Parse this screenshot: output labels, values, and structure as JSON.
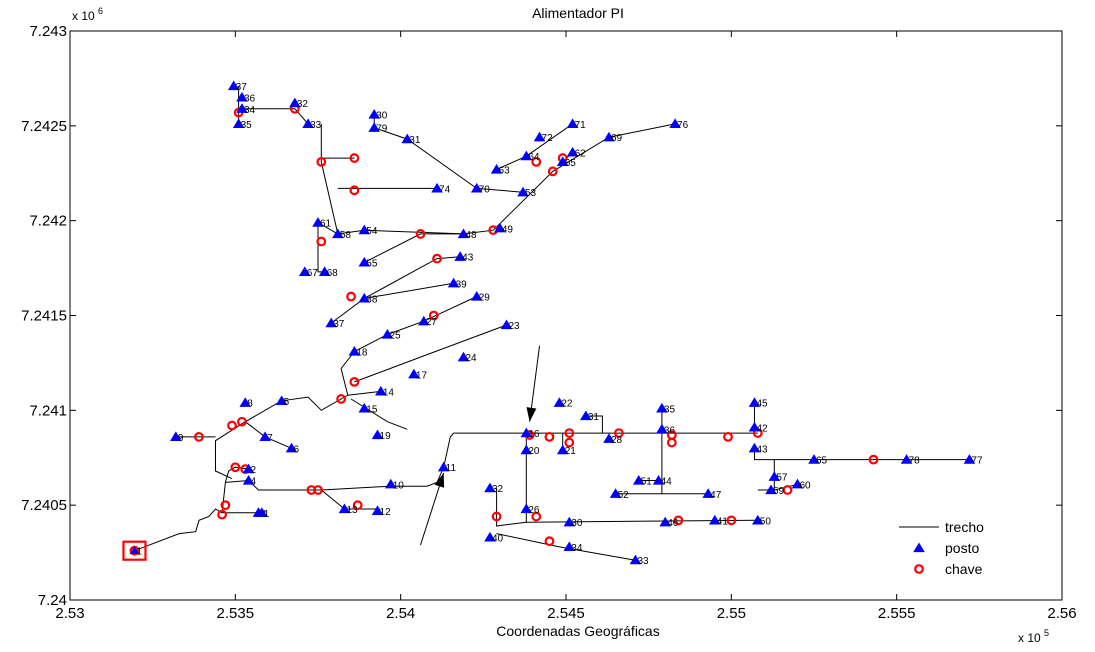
{
  "chart_data": {
    "type": "scatter",
    "title": "Alimentador PI",
    "xlabel": "Coordenadas Geográficas",
    "ylabel": "",
    "x_multiplier": "x 10",
    "x_multiplier_exp": "5",
    "y_multiplier": "x 10",
    "y_multiplier_exp": "6",
    "xlim": [
      2.53,
      2.56
    ],
    "ylim": [
      7.24,
      7.243
    ],
    "xticks": [
      "2.53",
      "2.535",
      "2.54",
      "2.545",
      "2.55",
      "2.555",
      "2.56"
    ],
    "xtick_values": [
      2.53,
      2.535,
      2.54,
      2.545,
      2.55,
      2.555,
      2.56
    ],
    "yticks": [
      "7.24",
      "7.2405",
      "7.241",
      "7.2415",
      "7.242",
      "7.2425",
      "7.243"
    ],
    "ytick_values": [
      7.24,
      7.2405,
      7.241,
      7.2415,
      7.242,
      7.2425,
      7.243
    ],
    "legend": {
      "position": "bottom-right",
      "entries": [
        {
          "label": "trecho",
          "marker": "line",
          "color": "#000000"
        },
        {
          "label": "posto",
          "marker": "triangle",
          "color": "#0000ff"
        },
        {
          "label": "chave",
          "marker": "circle",
          "color": "#ff0000"
        }
      ]
    },
    "colors": {
      "trecho": "#000000",
      "posto": "#0000ff",
      "chave": "#ff0000"
    },
    "postos": [
      {
        "label": "37",
        "x": 2.53495,
        "y": 7.24271
      },
      {
        "label": "36",
        "x": 2.5352,
        "y": 7.24265
      },
      {
        "label": "34",
        "x": 2.5352,
        "y": 7.24259
      },
      {
        "label": "35",
        "x": 2.5351,
        "y": 7.24251
      },
      {
        "label": "32",
        "x": 2.5368,
        "y": 7.24262
      },
      {
        "label": "33",
        "x": 2.5372,
        "y": 7.24251
      },
      {
        "label": "30",
        "x": 2.5392,
        "y": 7.24256
      },
      {
        "label": "79",
        "x": 2.5392,
        "y": 7.24249
      },
      {
        "label": "31",
        "x": 2.5402,
        "y": 7.24243
      },
      {
        "label": "71",
        "x": 2.5452,
        "y": 7.24251
      },
      {
        "label": "76",
        "x": 2.5483,
        "y": 7.24251
      },
      {
        "label": "72",
        "x": 2.5442,
        "y": 7.24244
      },
      {
        "label": "69",
        "x": 2.5463,
        "y": 7.24244
      },
      {
        "label": "62",
        "x": 2.5452,
        "y": 7.24236
      },
      {
        "label": "63",
        "x": 2.5429,
        "y": 7.24227
      },
      {
        "label": "64",
        "x": 2.5438,
        "y": 7.24234
      },
      {
        "label": "65",
        "x": 2.5449,
        "y": 7.24231
      },
      {
        "label": "70",
        "x": 2.5423,
        "y": 7.24217
      },
      {
        "label": "53",
        "x": 2.5437,
        "y": 7.24215
      },
      {
        "label": "74",
        "x": 2.5411,
        "y": 7.24217
      },
      {
        "label": "61",
        "x": 2.5375,
        "y": 7.24199
      },
      {
        "label": "58",
        "x": 2.5381,
        "y": 7.24193
      },
      {
        "label": "54",
        "x": 2.5389,
        "y": 7.24195
      },
      {
        "label": "48",
        "x": 2.5419,
        "y": 7.24193
      },
      {
        "label": "49",
        "x": 2.543,
        "y": 7.24196
      },
      {
        "label": "55",
        "x": 2.5389,
        "y": 7.24178
      },
      {
        "label": "67",
        "x": 2.5371,
        "y": 7.24173
      },
      {
        "label": "68",
        "x": 2.5377,
        "y": 7.24173
      },
      {
        "label": "43",
        "x": 2.5418,
        "y": 7.24181
      },
      {
        "label": "39",
        "x": 2.5416,
        "y": 7.24167
      },
      {
        "label": "38",
        "x": 2.5389,
        "y": 7.24159
      },
      {
        "label": "29",
        "x": 2.5423,
        "y": 7.2416
      },
      {
        "label": "37",
        "x": 2.5379,
        "y": 7.24146
      },
      {
        "label": "27",
        "x": 2.5407,
        "y": 7.24147
      },
      {
        "label": "25",
        "x": 2.5396,
        "y": 7.2414
      },
      {
        "label": "23",
        "x": 2.5432,
        "y": 7.24145
      },
      {
        "label": "18",
        "x": 2.5386,
        "y": 7.24131
      },
      {
        "label": "24",
        "x": 2.5419,
        "y": 7.24128
      },
      {
        "label": "17",
        "x": 2.5404,
        "y": 7.24119
      },
      {
        "label": "14",
        "x": 2.5394,
        "y": 7.2411
      },
      {
        "label": "15",
        "x": 2.5389,
        "y": 7.24101
      },
      {
        "label": "19",
        "x": 2.5393,
        "y": 7.24087
      },
      {
        "label": "8",
        "x": 2.5353,
        "y": 7.24104
      },
      {
        "label": "5",
        "x": 2.5364,
        "y": 7.24105
      },
      {
        "label": "7",
        "x": 2.5359,
        "y": 7.24086
      },
      {
        "label": "6",
        "x": 2.5367,
        "y": 7.2408
      },
      {
        "label": "9",
        "x": 2.5332,
        "y": 7.24086
      },
      {
        "label": "2",
        "x": 2.5354,
        "y": 7.24069
      },
      {
        "label": "4",
        "x": 2.5354,
        "y": 7.24063
      },
      {
        "label": "3",
        "x": 2.5357,
        "y": 7.24046
      },
      {
        "label": "10",
        "x": 2.5397,
        "y": 7.24061
      },
      {
        "label": "13",
        "x": 2.5383,
        "y": 7.24048
      },
      {
        "label": "12",
        "x": 2.5393,
        "y": 7.24047
      },
      {
        "label": "11",
        "x": 2.5413,
        "y": 7.2407
      },
      {
        "label": "16",
        "x": 2.5438,
        "y": 7.24088
      },
      {
        "label": "20",
        "x": 2.5438,
        "y": 7.24079
      },
      {
        "label": "21",
        "x": 2.5449,
        "y": 7.24079
      },
      {
        "label": "22",
        "x": 2.5448,
        "y": 7.24104
      },
      {
        "label": "31",
        "x": 2.5456,
        "y": 7.24097
      },
      {
        "label": "28",
        "x": 2.5463,
        "y": 7.24085
      },
      {
        "label": "35",
        "x": 2.5479,
        "y": 7.24101
      },
      {
        "label": "36",
        "x": 2.5479,
        "y": 7.2409
      },
      {
        "label": "45",
        "x": 2.5507,
        "y": 7.24104
      },
      {
        "label": "42",
        "x": 2.5507,
        "y": 7.24091
      },
      {
        "label": "43",
        "x": 2.5507,
        "y": 7.2408
      },
      {
        "label": "65",
        "x": 2.5525,
        "y": 7.24074
      },
      {
        "label": "78",
        "x": 2.5553,
        "y": 7.24074
      },
      {
        "label": "77",
        "x": 2.5572,
        "y": 7.24074
      },
      {
        "label": "57",
        "x": 2.5513,
        "y": 7.24065
      },
      {
        "label": "60",
        "x": 2.552,
        "y": 7.24061
      },
      {
        "label": "59",
        "x": 2.5512,
        "y": 7.24058
      },
      {
        "label": "51",
        "x": 2.5472,
        "y": 7.24063
      },
      {
        "label": "44",
        "x": 2.5478,
        "y": 7.24063
      },
      {
        "label": "52",
        "x": 2.5465,
        "y": 7.24056
      },
      {
        "label": "47",
        "x": 2.5493,
        "y": 7.24056
      },
      {
        "label": "32",
        "x": 2.5427,
        "y": 7.24059
      },
      {
        "label": "26",
        "x": 2.5438,
        "y": 7.24048
      },
      {
        "label": "30",
        "x": 2.5451,
        "y": 7.24041
      },
      {
        "label": "40",
        "x": 2.5427,
        "y": 7.24033
      },
      {
        "label": "46",
        "x": 2.548,
        "y": 7.24041
      },
      {
        "label": "41",
        "x": 2.5495,
        "y": 7.24042
      },
      {
        "label": "50",
        "x": 2.5508,
        "y": 7.24042
      },
      {
        "label": "34",
        "x": 2.5451,
        "y": 7.24028
      },
      {
        "label": "33",
        "x": 2.5471,
        "y": 7.24021
      },
      {
        "label": "1",
        "x": 2.5358,
        "y": 7.24046
      }
    ],
    "chaves": [
      {
        "x": 2.53195,
        "y": 7.24026
      },
      {
        "x": 2.5351,
        "y": 7.24257
      },
      {
        "x": 2.5368,
        "y": 7.24259
      },
      {
        "x": 2.5376,
        "y": 7.24231
      },
      {
        "x": 2.5386,
        "y": 7.24233
      },
      {
        "x": 2.5386,
        "y": 7.24216
      },
      {
        "x": 2.5376,
        "y": 7.24189
      },
      {
        "x": 2.5406,
        "y": 7.24193
      },
      {
        "x": 2.5428,
        "y": 7.24195
      },
      {
        "x": 2.5441,
        "y": 7.24231
      },
      {
        "x": 2.5449,
        "y": 7.24233
      },
      {
        "x": 2.5446,
        "y": 7.24226
      },
      {
        "x": 2.5411,
        "y": 7.2418
      },
      {
        "x": 2.5385,
        "y": 7.2416
      },
      {
        "x": 2.541,
        "y": 7.2415
      },
      {
        "x": 2.5386,
        "y": 7.24115
      },
      {
        "x": 2.5382,
        "y": 7.24106
      },
      {
        "x": 2.5339,
        "y": 7.24086
      },
      {
        "x": 2.5349,
        "y": 7.24092
      },
      {
        "x": 2.5352,
        "y": 7.24094
      },
      {
        "x": 2.535,
        "y": 7.2407
      },
      {
        "x": 2.5353,
        "y": 7.24069
      },
      {
        "x": 2.5347,
        "y": 7.2405
      },
      {
        "x": 2.5346,
        "y": 7.24045
      },
      {
        "x": 2.5373,
        "y": 7.24058
      },
      {
        "x": 2.5375,
        "y": 7.24058
      },
      {
        "x": 2.5387,
        "y": 7.2405
      },
      {
        "x": 2.5439,
        "y": 7.24087
      },
      {
        "x": 2.5445,
        "y": 7.24086
      },
      {
        "x": 2.5451,
        "y": 7.24088
      },
      {
        "x": 2.5451,
        "y": 7.24083
      },
      {
        "x": 2.5466,
        "y": 7.24088
      },
      {
        "x": 2.5482,
        "y": 7.24087
      },
      {
        "x": 2.5482,
        "y": 7.24083
      },
      {
        "x": 2.5499,
        "y": 7.24086
      },
      {
        "x": 2.5508,
        "y": 7.24088
      },
      {
        "x": 2.5517,
        "y": 7.24058
      },
      {
        "x": 2.5543,
        "y": 7.24074
      },
      {
        "x": 2.5429,
        "y": 7.24044
      },
      {
        "x": 2.5441,
        "y": 7.24044
      },
      {
        "x": 2.5445,
        "y": 7.24031
      },
      {
        "x": 2.5484,
        "y": 7.24042
      },
      {
        "x": 2.55,
        "y": 7.24042
      }
    ],
    "trechos": [
      [
        [
          2.53195,
          7.24026
        ],
        [
          2.5333,
          7.24035
        ],
        [
          2.5338,
          7.24036
        ],
        [
          2.5339,
          7.24042
        ],
        [
          2.5342,
          7.24044
        ],
        [
          2.5344,
          7.24048
        ],
        [
          2.5346,
          7.24046
        ]
      ],
      [
        [
          2.5346,
          7.24046
        ],
        [
          2.5358,
          7.24046
        ]
      ],
      [
        [
          2.5346,
          7.24046
        ],
        [
          2.5347,
          7.24062
        ],
        [
          2.5348,
          7.24068
        ],
        [
          2.535,
          7.2407
        ],
        [
          2.5354,
          7.24069
        ]
      ],
      [
        [
          2.5347,
          7.24062
        ],
        [
          2.5354,
          7.24063
        ],
        [
          2.5357,
          7.24058
        ],
        [
          2.5368,
          7.24058
        ],
        [
          2.5376,
          7.24058
        ],
        [
          2.5383,
          7.24048
        ],
        [
          2.5393,
          7.24048
        ]
      ],
      [
        [
          2.5376,
          7.24058
        ],
        [
          2.5397,
          7.2406
        ],
        [
          2.5408,
          7.2406
        ],
        [
          2.5411,
          7.24062
        ],
        [
          2.5413,
          7.2407
        ],
        [
          2.5415,
          7.24086
        ],
        [
          2.5416,
          7.24088
        ],
        [
          2.5438,
          7.24088
        ]
      ],
      [
        [
          2.5438,
          7.24088
        ],
        [
          2.5466,
          7.24088
        ],
        [
          2.5508,
          7.24088
        ]
      ],
      [
        [
          2.5438,
          7.24088
        ],
        [
          2.5438,
          7.24044
        ],
        [
          2.5438,
          7.24041
        ],
        [
          2.5508,
          7.24042
        ]
      ],
      [
        [
          2.5438,
          7.24041
        ],
        [
          2.5429,
          7.24039
        ],
        [
          2.5429,
          7.24059
        ]
      ],
      [
        [
          2.5429,
          7.24035
        ],
        [
          2.5448,
          7.24028
        ],
        [
          2.5471,
          7.24021
        ]
      ],
      [
        [
          2.5449,
          7.24079
        ],
        [
          2.5449,
          7.24088
        ]
      ],
      [
        [
          2.5456,
          7.24097
        ],
        [
          2.5461,
          7.24097
        ],
        [
          2.5461,
          7.24088
        ]
      ],
      [
        [
          2.5479,
          7.24101
        ],
        [
          2.5479,
          7.24063
        ],
        [
          2.5479,
          7.24056
        ]
      ],
      [
        [
          2.5465,
          7.24056
        ],
        [
          2.5493,
          7.24056
        ]
      ],
      [
        [
          2.5472,
          7.24063
        ],
        [
          2.5479,
          7.24063
        ]
      ],
      [
        [
          2.5507,
          7.24104
        ],
        [
          2.5507,
          7.24088
        ]
      ],
      [
        [
          2.5507,
          7.2408
        ],
        [
          2.5507,
          7.24074
        ],
        [
          2.5572,
          7.24074
        ]
      ],
      [
        [
          2.5513,
          7.24074
        ],
        [
          2.5513,
          7.24058
        ],
        [
          2.552,
          7.24061
        ]
      ],
      [
        [
          2.5508,
          7.24058
        ],
        [
          2.5513,
          7.24058
        ]
      ],
      [
        [
          2.5349,
          7.24064
        ],
        [
          2.5344,
          7.24068
        ],
        [
          2.5344,
          7.24084
        ],
        [
          2.5353,
          7.24094
        ]
      ],
      [
        [
          2.5332,
          7.24086
        ],
        [
          2.5344,
          7.24086
        ]
      ],
      [
        [
          2.5353,
          7.24094
        ],
        [
          2.5359,
          7.24086
        ],
        [
          2.5367,
          7.2408
        ]
      ],
      [
        [
          2.5353,
          7.24094
        ],
        [
          2.5364,
          7.24105
        ],
        [
          2.5372,
          7.24107
        ],
        [
          2.5376,
          7.241
        ],
        [
          2.5384,
          7.24108
        ],
        [
          2.5394,
          7.2411
        ]
      ],
      [
        [
          2.5385,
          7.24106
        ],
        [
          2.5396,
          7.24094
        ],
        [
          2.5402,
          7.2409
        ]
      ],
      [
        [
          2.5384,
          7.24108
        ],
        [
          2.5382,
          7.24122
        ],
        [
          2.5386,
          7.24131
        ],
        [
          2.5396,
          7.2414
        ],
        [
          2.5407,
          7.24147
        ],
        [
          2.5423,
          7.2416
        ]
      ],
      [
        [
          2.5386,
          7.24115
        ],
        [
          2.5409,
          7.2413
        ],
        [
          2.5432,
          7.24145
        ]
      ],
      [
        [
          2.5379,
          7.24146
        ],
        [
          2.5389,
          7.24159
        ],
        [
          2.5416,
          7.24167
        ]
      ],
      [
        [
          2.5389,
          7.24159
        ],
        [
          2.5411,
          7.2418
        ],
        [
          2.5418,
          7.24181
        ]
      ],
      [
        [
          2.5389,
          7.24178
        ],
        [
          2.5406,
          7.24193
        ],
        [
          2.5419,
          7.24193
        ],
        [
          2.5428,
          7.24195
        ],
        [
          2.5446,
          7.24226
        ],
        [
          2.5463,
          7.24244
        ],
        [
          2.5483,
          7.24251
        ]
      ],
      [
        [
          2.5438,
          7.24234
        ],
        [
          2.5452,
          7.24251
        ]
      ],
      [
        [
          2.5449,
          7.24231
        ],
        [
          2.5452,
          7.24236
        ]
      ],
      [
        [
          2.5437,
          7.24215
        ],
        [
          2.5423,
          7.24217
        ]
      ],
      [
        [
          2.5429,
          7.24227
        ],
        [
          2.5438,
          7.24234
        ]
      ],
      [
        [
          2.5381,
          7.24193
        ],
        [
          2.5375,
          7.24199
        ],
        [
          2.5375,
          7.24173
        ],
        [
          2.5377,
          7.24173
        ]
      ],
      [
        [
          2.5381,
          7.24193
        ],
        [
          2.5389,
          7.24195
        ],
        [
          2.5419,
          7.24193
        ]
      ],
      [
        [
          2.5381,
          7.24193
        ],
        [
          2.5376,
          7.24231
        ],
        [
          2.5376,
          7.24251
        ]
      ],
      [
        [
          2.5381,
          7.24217
        ],
        [
          2.5411,
          7.24217
        ]
      ],
      [
        [
          2.5376,
          7.24233
        ],
        [
          2.5386,
          7.24233
        ]
      ],
      [
        [
          2.5351,
          7.24271
        ],
        [
          2.5351,
          7.24251
        ]
      ],
      [
        [
          2.5352,
          7.24259
        ],
        [
          2.5368,
          7.24259
        ],
        [
          2.5372,
          7.24251
        ]
      ],
      [
        [
          2.5392,
          7.24256
        ],
        [
          2.5392,
          7.24249
        ],
        [
          2.5402,
          7.24243
        ],
        [
          2.5423,
          7.24217
        ]
      ]
    ],
    "arrows": [
      {
        "from": [
          2.5442,
          7.24134
        ],
        "to": [
          2.5439,
          7.24094
        ]
      },
      {
        "from": [
          2.5406,
          7.24029
        ],
        "to": [
          2.5413,
          7.24067
        ]
      }
    ],
    "source_marker": {
      "x": 2.53195,
      "y": 7.24026,
      "label": "1"
    }
  }
}
